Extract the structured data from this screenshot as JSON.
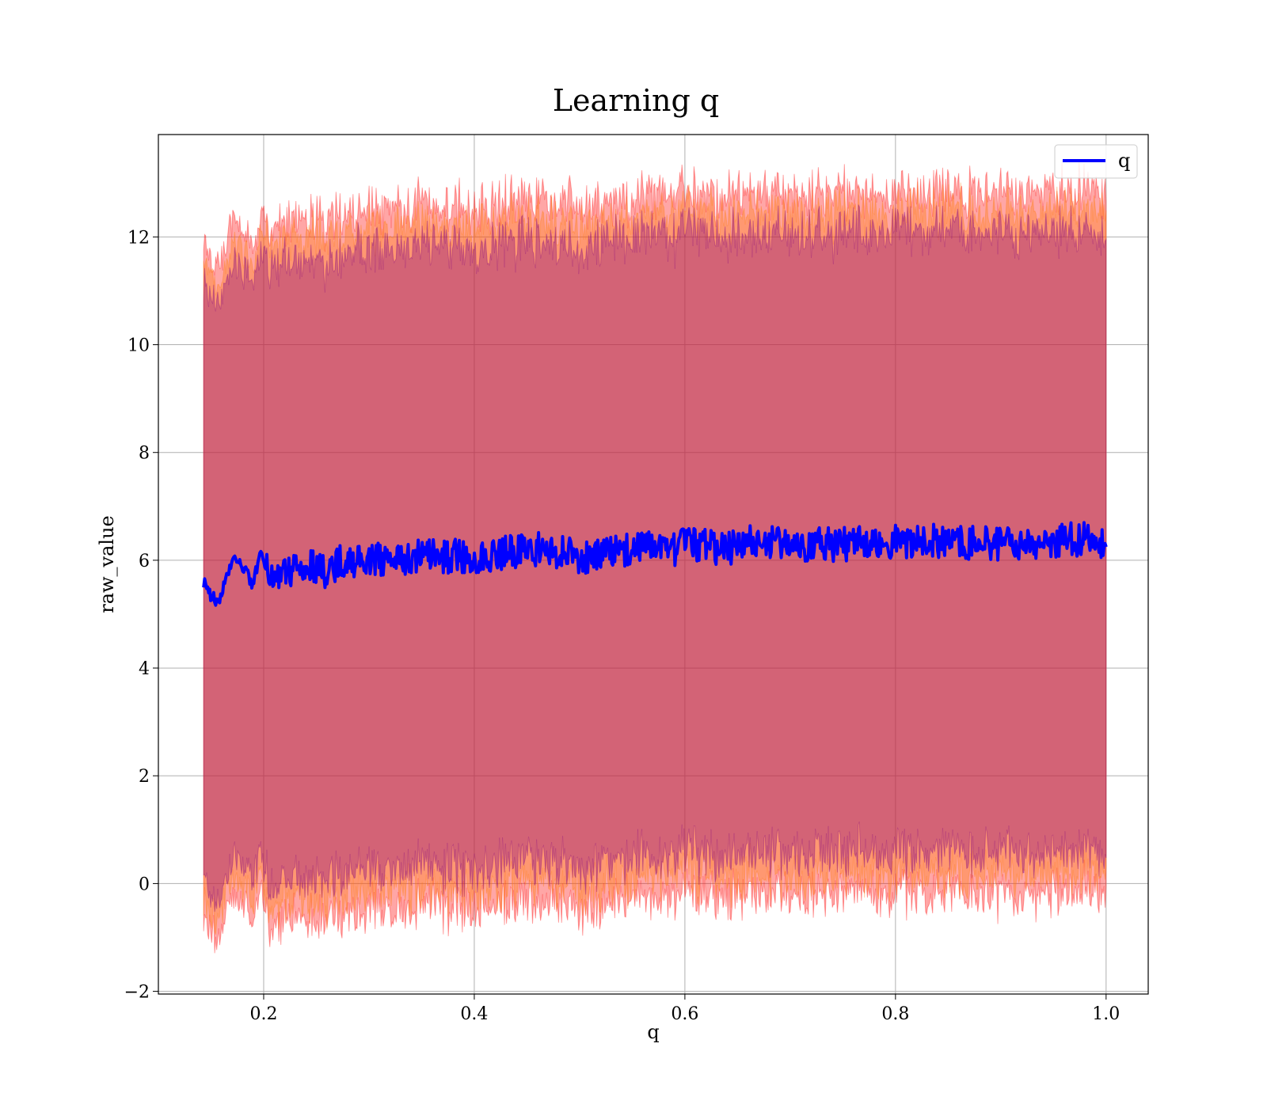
{
  "chart_data": {
    "type": "line",
    "title": "Learning q",
    "xlabel": "q",
    "ylabel": "raw_value",
    "xlim": [
      0.1,
      1.04
    ],
    "ylim": [
      -2.05,
      13.9
    ],
    "xticks": [
      0.2,
      0.4,
      0.6,
      0.8,
      1.0
    ],
    "xtick_labels": [
      "0.2",
      "0.4",
      "0.6",
      "0.8",
      "1.0"
    ],
    "yticks": [
      -2,
      0,
      2,
      4,
      6,
      8,
      10,
      12
    ],
    "ytick_labels": [
      "−2",
      "0",
      "2",
      "4",
      "6",
      "8",
      "10",
      "12"
    ],
    "grid": true,
    "legend": {
      "position": "top-right",
      "entries": [
        "q"
      ]
    },
    "series": [
      {
        "name": "q",
        "color": "#0000ff",
        "x": [
          0.143,
          0.15,
          0.157,
          0.163,
          0.17,
          0.18,
          0.19,
          0.196,
          0.205,
          0.22,
          0.24,
          0.26,
          0.275,
          0.3,
          0.33,
          0.36,
          0.4,
          0.43,
          0.46,
          0.49,
          0.515,
          0.54,
          0.57,
          0.58,
          0.6,
          0.64,
          0.66,
          0.7,
          0.75,
          0.8,
          0.85,
          0.9,
          0.94,
          0.98,
          1.0
        ],
        "values": [
          5.6,
          5.35,
          5.2,
          5.55,
          6.0,
          5.9,
          5.5,
          6.15,
          5.7,
          5.8,
          5.9,
          5.8,
          6.0,
          6.0,
          6.0,
          6.1,
          6.05,
          6.15,
          6.2,
          6.1,
          6.05,
          6.2,
          6.3,
          6.1,
          6.3,
          6.2,
          6.35,
          6.3,
          6.3,
          6.35,
          6.35,
          6.3,
          6.35,
          6.4,
          6.3
        ]
      }
    ],
    "bands": [
      {
        "color": "#ff0000",
        "opacity": 0.35
      },
      {
        "color": "#ff7f0e",
        "opacity": 0.35
      },
      {
        "color": "#800080",
        "opacity": 0.35
      }
    ]
  }
}
